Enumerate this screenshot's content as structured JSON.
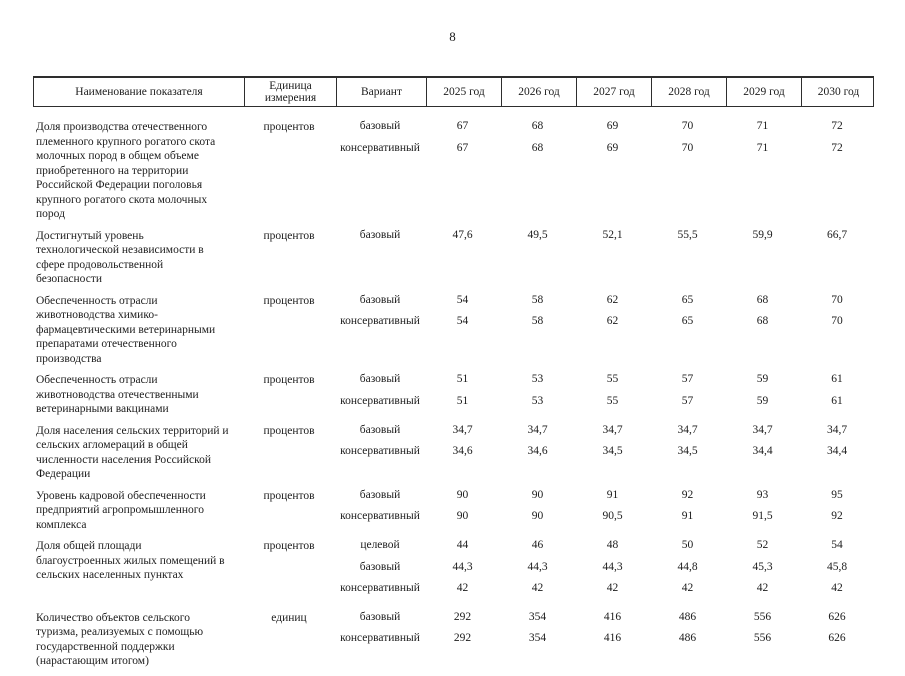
{
  "page": {
    "number": "8"
  },
  "table": {
    "headers": {
      "indicator": "Наименование показателя",
      "unit": "Единица измерения",
      "variant": "Вариант",
      "years": [
        "2025 год",
        "2026 год",
        "2027 год",
        "2028 год",
        "2029 год",
        "2030 год"
      ]
    },
    "rows": [
      {
        "indicator": "Доля производства отечественного племенного крупного рогатого скота молочных пород в общем объеме приобретенного на территории Российской Федерации поголовья крупного рогатого скота молочных пород",
        "unit": "процентов",
        "variants": [
          {
            "name": "базовый",
            "values": [
              "67",
              "68",
              "69",
              "70",
              "71",
              "72"
            ]
          },
          {
            "name": "консервативный",
            "values": [
              "67",
              "68",
              "69",
              "70",
              "71",
              "72"
            ]
          }
        ]
      },
      {
        "indicator": "Достигнутый уровень технологической независимости в сфере продовольственной безопасности",
        "unit": "процентов",
        "variants": [
          {
            "name": "базовый",
            "values": [
              "47,6",
              "49,5",
              "52,1",
              "55,5",
              "59,9",
              "66,7"
            ]
          }
        ]
      },
      {
        "indicator": "Обеспеченность отрасли животноводства химико-фармацевтическими ветеринарными препаратами отечественного производства",
        "unit": "процентов",
        "variants": [
          {
            "name": "базовый",
            "values": [
              "54",
              "58",
              "62",
              "65",
              "68",
              "70"
            ]
          },
          {
            "name": "консервативный",
            "values": [
              "54",
              "58",
              "62",
              "65",
              "68",
              "70"
            ]
          }
        ]
      },
      {
        "indicator": "Обеспеченность отрасли животноводства отечественными ветеринарными вакцинами",
        "unit": "процентов",
        "variants": [
          {
            "name": "базовый",
            "values": [
              "51",
              "53",
              "55",
              "57",
              "59",
              "61"
            ]
          },
          {
            "name": "консервативный",
            "values": [
              "51",
              "53",
              "55",
              "57",
              "59",
              "61"
            ]
          }
        ]
      },
      {
        "indicator": "Доля населения сельских территорий и сельских агломераций в общей численности населения Российской Федерации",
        "unit": "процентов",
        "variants": [
          {
            "name": "базовый",
            "values": [
              "34,7",
              "34,7",
              "34,7",
              "34,7",
              "34,7",
              "34,7"
            ]
          },
          {
            "name": "консервативный",
            "values": [
              "34,6",
              "34,6",
              "34,5",
              "34,5",
              "34,4",
              "34,4"
            ]
          }
        ]
      },
      {
        "indicator": "Уровень кадровой обеспеченности предприятий агропромышленного комплекса",
        "unit": "процентов",
        "variants": [
          {
            "name": "базовый",
            "values": [
              "90",
              "90",
              "91",
              "92",
              "93",
              "95"
            ]
          },
          {
            "name": "консервативный",
            "values": [
              "90",
              "90",
              "90,5",
              "91",
              "91,5",
              "92"
            ]
          }
        ]
      },
      {
        "indicator": "Доля общей площади благоустроенных жилых помещений в сельских населенных пунктах",
        "unit": "процентов",
        "variants": [
          {
            "name": "целевой",
            "values": [
              "44",
              "46",
              "48",
              "50",
              "52",
              "54"
            ]
          },
          {
            "name": "базовый",
            "values": [
              "44,3",
              "44,3",
              "44,3",
              "44,8",
              "45,3",
              "45,8"
            ]
          },
          {
            "name": "консервативный",
            "values": [
              "42",
              "42",
              "42",
              "42",
              "42",
              "42"
            ]
          }
        ]
      },
      {
        "indicator": "Количество объектов сельского туризма, реализуемых с помощью государственной поддержки (нарастающим итогом)",
        "unit": "единиц",
        "variants": [
          {
            "name": "базовый",
            "values": [
              "292",
              "354",
              "416",
              "486",
              "556",
              "626"
            ]
          },
          {
            "name": "консервативный",
            "values": [
              "292",
              "354",
              "416",
              "486",
              "556",
              "626"
            ]
          }
        ]
      }
    ]
  }
}
